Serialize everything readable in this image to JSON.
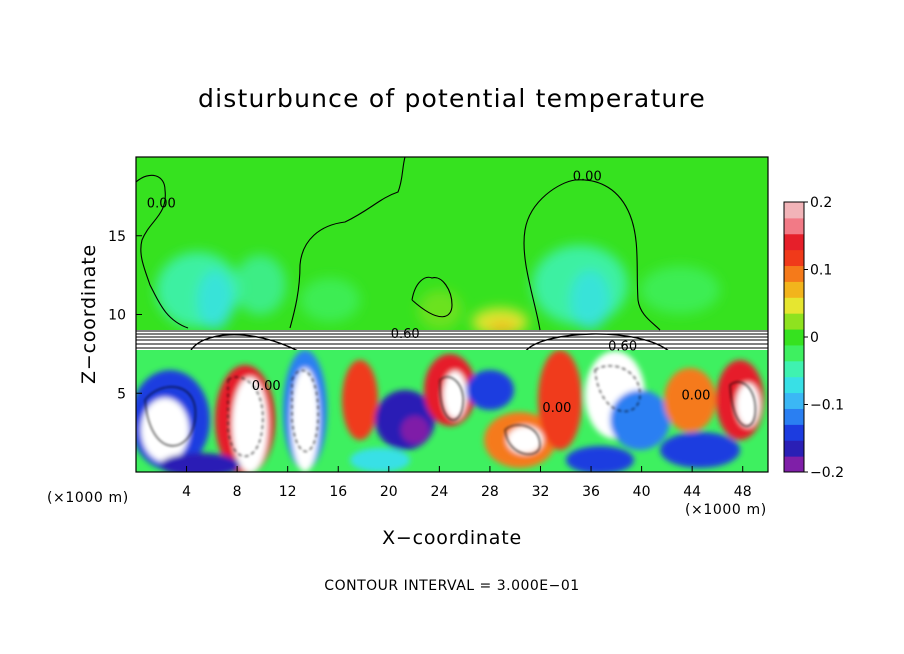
{
  "chart_data": {
    "type": "heatmap",
    "title": "disturbunce of potential temperature",
    "xlabel": "X−coordinate",
    "ylabel": "Z−coordinate",
    "x_unit_left": "(×1000 m)",
    "x_unit_right": "(×1000 m)",
    "note": "CONTOUR INTERVAL = 3.000E−01",
    "xlim": [
      0,
      50
    ],
    "ylim": [
      0,
      20
    ],
    "x_ticks": [
      4,
      8,
      12,
      16,
      20,
      24,
      28,
      32,
      36,
      40,
      44,
      48
    ],
    "x_tick_labels": [
      "4",
      "8",
      "12",
      "16",
      "20",
      "24",
      "28",
      "32",
      "36",
      "40",
      "44",
      "48"
    ],
    "y_ticks": [
      5,
      10,
      15
    ],
    "y_tick_labels": [
      "5",
      "10",
      "15"
    ],
    "colorbar": {
      "range": [
        -0.2,
        0.2
      ],
      "tick_values": [
        0.2,
        0.1,
        0,
        -0.1,
        -0.2
      ],
      "tick_labels": [
        "0.2",
        "0.1",
        "0",
        "−0.1",
        "−0.2"
      ],
      "colors": [
        "#7f1fa8",
        "#2a1fb5",
        "#1c3ce0",
        "#2a7ff2",
        "#3bb7f5",
        "#38e0e6",
        "#3ff2b0",
        "#3ef060",
        "#36e21f",
        "#8fe21f",
        "#e6e630",
        "#f2b41c",
        "#f57a1a",
        "#f03a1a",
        "#e61f2a",
        "#f27a86",
        "#f2b4b8"
      ]
    },
    "contour_labels": [
      {
        "text": "0.00",
        "x": 2,
        "z": 16.8
      },
      {
        "text": "0.00",
        "x": 35.7,
        "z": 18.5
      },
      {
        "text": "0.60",
        "x": 21.3,
        "z": 8.5
      },
      {
        "text": "0.60",
        "x": 38.5,
        "z": 7.7
      },
      {
        "text": "0.00",
        "x": 10.3,
        "z": 5.2
      },
      {
        "text": "0.00",
        "x": 33.3,
        "z": 3.8
      },
      {
        "text": "0.00",
        "x": 44.3,
        "z": 4.6
      }
    ]
  }
}
